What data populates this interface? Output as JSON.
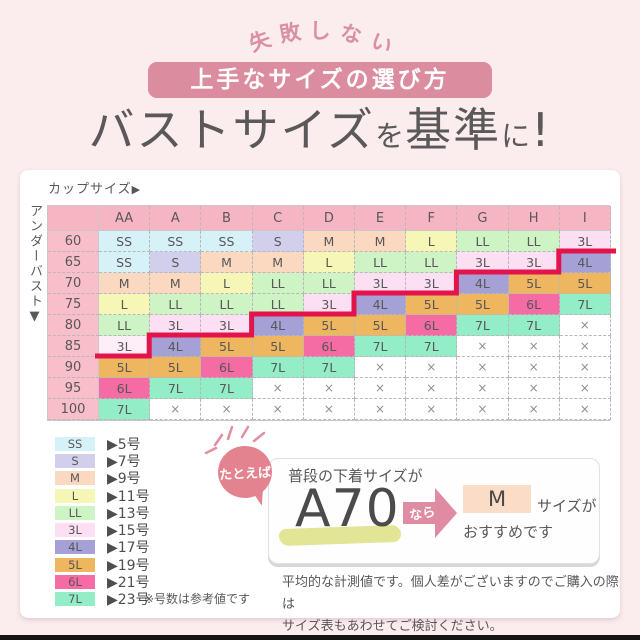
{
  "page": {
    "background": "#fbecee",
    "bottom_bar_color": "#141414"
  },
  "header": {
    "tagline": "失敗しない",
    "banner_label": "上手なサイズの選び方",
    "banner_bg": "#db8d9f",
    "title_plain": "バストサイズを基準に!",
    "title_parts": [
      {
        "text": "バストサイズ",
        "size": "big"
      },
      {
        "text": "を",
        "size": "small"
      },
      {
        "text": "基準",
        "size": "big"
      },
      {
        "text": "に",
        "size": "small"
      },
      {
        "text": "!",
        "size": "big"
      }
    ]
  },
  "size_table": {
    "cup_label": "カップサイズ",
    "cup_arrow": "▶",
    "under_label": "アンダーバスト",
    "under_arrow": "▼",
    "columns": [
      "AA",
      "A",
      "B",
      "C",
      "D",
      "E",
      "F",
      "G",
      "H",
      "I"
    ],
    "rows": [
      {
        "under": "60",
        "cells": [
          "SS",
          "SS",
          "SS",
          "S",
          "M",
          "M",
          "L",
          "LL",
          "LL",
          "3L"
        ]
      },
      {
        "under": "65",
        "cells": [
          "SS",
          "S",
          "M",
          "M",
          "L",
          "LL",
          "LL",
          "3L",
          "3L",
          "4L"
        ]
      },
      {
        "under": "70",
        "cells": [
          "M",
          "M",
          "L",
          "LL",
          "LL",
          "3L",
          "3L",
          "4L",
          "5L",
          "5L"
        ]
      },
      {
        "under": "75",
        "cells": [
          "L",
          "LL",
          "LL",
          "LL",
          "3L",
          "4L",
          "5L",
          "5L",
          "6L",
          "7L"
        ]
      },
      {
        "under": "80",
        "cells": [
          "LL",
          "3L",
          "3L",
          "4L",
          "5L",
          "5L",
          "6L",
          "7L",
          "7L",
          "×"
        ]
      },
      {
        "under": "85",
        "cells": [
          "3L",
          "4L",
          "5L",
          "5L",
          "6L",
          "7L",
          "7L",
          "×",
          "×",
          "×"
        ]
      },
      {
        "under": "90",
        "cells": [
          "5L",
          "5L",
          "6L",
          "7L",
          "7L",
          "×",
          "×",
          "×",
          "×",
          "×"
        ]
      },
      {
        "under": "95",
        "cells": [
          "6L",
          "7L",
          "7L",
          "×",
          "×",
          "×",
          "×",
          "×",
          "×",
          "×"
        ]
      },
      {
        "under": "100",
        "cells": [
          "7L",
          "×",
          "×",
          "×",
          "×",
          "×",
          "×",
          "×",
          "×",
          "×"
        ]
      }
    ],
    "palette": {
      "SS": "#d7f1f8",
      "S": "#d2cfec",
      "M": "#fbd8c0",
      "L": "#f6f6b6",
      "LL": "#cef3c4",
      "3L": "#fcdff3",
      "4L": "#a5a1d7",
      "5L": "#eeb65e",
      "6L": "#f56ba3",
      "7L": "#93eec8",
      "×": "#ffffff"
    },
    "header_bg": "#f6b5c3",
    "row_label_bg": "#f8bfca",
    "light_cell": {
      "row": "85",
      "col": "AA",
      "color": "#fdeef8"
    },
    "red_line": {
      "color": "#e3134b",
      "boundary_col_by_row": {
        "65": 9,
        "70": 7,
        "75": 5,
        "80": 3,
        "85": 1
      }
    }
  },
  "legend": {
    "items": [
      {
        "size": "SS",
        "label": "▶5号"
      },
      {
        "size": "S",
        "label": "▶7号"
      },
      {
        "size": "M",
        "label": "▶9号"
      },
      {
        "size": "L",
        "label": "▶11号"
      },
      {
        "size": "LL",
        "label": "▶13号"
      },
      {
        "size": "3L",
        "label": "▶15号"
      },
      {
        "size": "4L",
        "label": "▶17号"
      },
      {
        "size": "5L",
        "label": "▶19号"
      },
      {
        "size": "6L",
        "label": "▶21号"
      },
      {
        "size": "7L",
        "label": "▶23号"
      }
    ],
    "note": "※号数は参考値です"
  },
  "example": {
    "badge": "たとえば",
    "badge_bg": "#e2838f",
    "sparkle_color": "#e08fa0",
    "intro": "普段の下着サイズが",
    "size_code": "A70",
    "highlight_color": "#dee289",
    "connector": "なら",
    "arrow_color": "#df8ba1",
    "result_size": "M",
    "result_box_bg": "#fbdcc7",
    "suffix_inline": "サイズが",
    "suffix_below": "おすすめです"
  },
  "footnote": {
    "line1": "平均的な計測値です。個人差がございますのでご購入の際は",
    "line2": "サイズ表もあわせてご検討ください。"
  }
}
